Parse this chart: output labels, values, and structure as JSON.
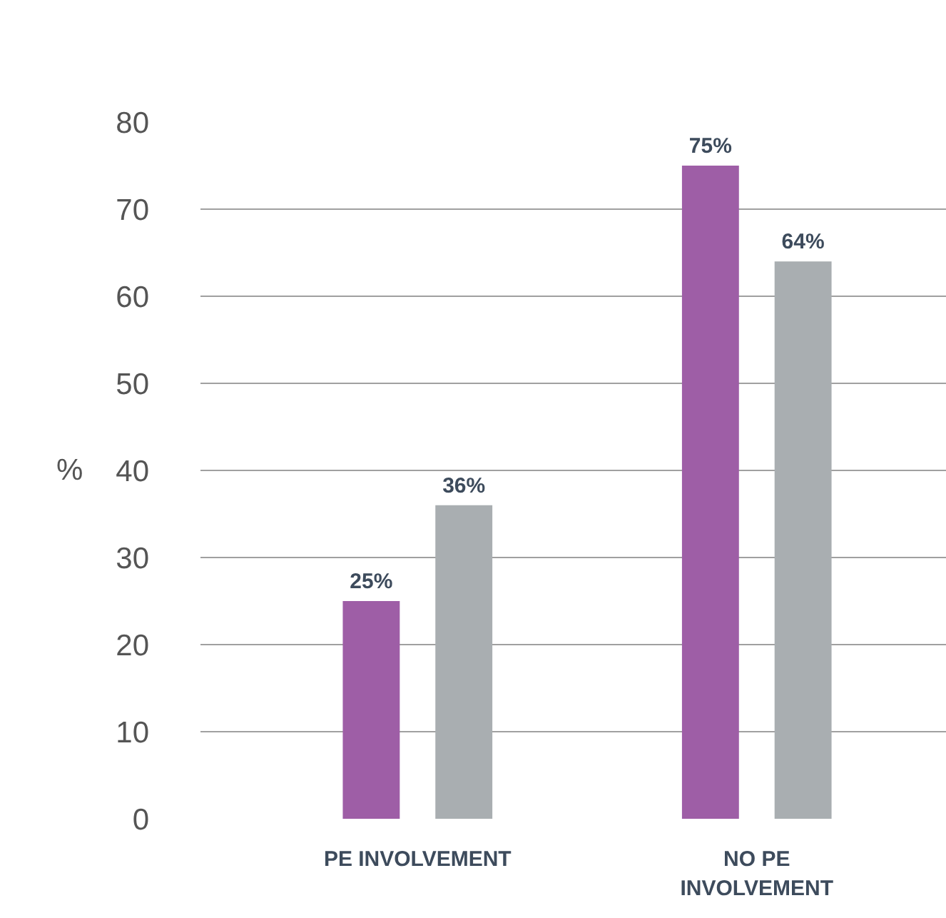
{
  "chart_data": {
    "type": "bar",
    "ylabel": "%",
    "categories": [
      "PE INVOLVEMENT",
      "NO PE INVOLVEMENT"
    ],
    "series": [
      {
        "color": "#9e5ea6",
        "values": [
          25,
          75
        ],
        "value_labels": [
          "25%",
          "75%"
        ]
      },
      {
        "color": "#a9aeb1",
        "values": [
          36,
          64
        ],
        "value_labels": [
          "36%",
          "64%"
        ]
      }
    ],
    "ylim": [
      0,
      80
    ],
    "yticks": [
      0,
      10,
      20,
      30,
      40,
      50,
      60,
      70,
      80
    ],
    "grid": "y"
  }
}
